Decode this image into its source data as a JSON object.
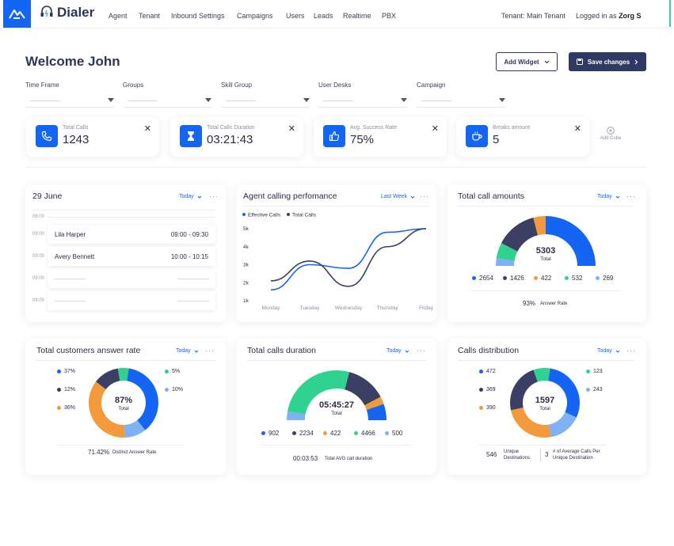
{
  "app": {
    "name": "Dialer"
  },
  "nav": [
    "Agent",
    "Tenant",
    "Inbound Settings",
    "Campaigns",
    "Users",
    "Leads",
    "Realtime",
    "PBX"
  ],
  "header_right": {
    "tenant": "Tenant: Main Tenant",
    "logged_prefix": "Logged in as",
    "user": "Zorg S"
  },
  "welcome": "Welcome John",
  "buttons": {
    "add_widget": "Add Widget",
    "save_changes": "Save changes"
  },
  "filters": [
    "Time Frame",
    "Groups",
    "Skill Group",
    "User Desks",
    "Campaign"
  ],
  "kpis": [
    {
      "label": "Total Calls",
      "value": "1243",
      "icon": "phone-icon"
    },
    {
      "label": "Total Calls Duration",
      "value": "03:21:43",
      "icon": "hourglass-icon"
    },
    {
      "label": "Avg. Success Rate",
      "value": "75%",
      "icon": "thumbs-up-icon"
    },
    {
      "label": "Breaks amount",
      "value": "5",
      "icon": "coffee-icon"
    }
  ],
  "add_cube": "Add Cube",
  "schedule": {
    "title": "29 June",
    "range": "Today",
    "times": [
      "08:00",
      "09:00",
      "09:00",
      "09:00",
      "09:00"
    ],
    "entries": [
      {
        "name": "Lila Harper",
        "time": "09:00 - 09:30"
      },
      {
        "name": "Avery Bennett",
        "time": "10:00 - 10:15"
      }
    ]
  },
  "perf": {
    "title": "Agent calling perfomance",
    "range": "Last Week",
    "chart_data": {
      "type": "line",
      "categories": [
        "Monday",
        "Tuesday",
        "Wednesday",
        "Thursday",
        "Friday"
      ],
      "series": [
        {
          "name": "Effective Calls",
          "values": [
            1.6,
            3.0,
            2.8,
            4.8,
            5.0
          ],
          "color": "#1565f4"
        },
        {
          "name": "Total Calls",
          "values": [
            2.1,
            3.2,
            1.8,
            4.0,
            5.0
          ],
          "color": "#3a3f63"
        }
      ],
      "y_ticks": [
        "5k",
        "4k",
        "3k",
        "2k",
        "1k"
      ],
      "ylim": [
        1,
        5
      ]
    }
  },
  "total_amounts": {
    "title": "Total call amounts",
    "range": "Today",
    "center_value": "5303",
    "center_label": "Total",
    "legend": [
      {
        "value": "2654",
        "color": "#1565f4"
      },
      {
        "value": "1426",
        "color": "#3a3f63"
      },
      {
        "value": "422",
        "color": "#f39a3c"
      },
      {
        "value": "532",
        "color": "#2fd38f"
      },
      {
        "value": "269",
        "color": "#7fb2f5"
      }
    ],
    "footer_value": "93%",
    "footer_label": "Answer Rate"
  },
  "answer_rate": {
    "title": "Total customers answer rate",
    "range": "Today",
    "center_value": "87%",
    "center_label": "Total",
    "left_legend": [
      {
        "value": "37%",
        "color": "#1565f4"
      },
      {
        "value": "12%",
        "color": "#3a3f63"
      },
      {
        "value": "36%",
        "color": "#f39a3c"
      }
    ],
    "right_legend": [
      {
        "value": "5%",
        "color": "#2fd38f"
      },
      {
        "value": "10%",
        "color": "#7fb2f5"
      }
    ],
    "footer_value": "71.42%",
    "footer_label": "Distinct Answer Rate"
  },
  "duration": {
    "title": "Total calls duration",
    "range": "Today",
    "center_value": "05:45:27",
    "center_label": "Total",
    "legend": [
      {
        "value": "902",
        "color": "#1565f4"
      },
      {
        "value": "2234",
        "color": "#3a3f63"
      },
      {
        "value": "422",
        "color": "#f39a3c"
      },
      {
        "value": "4466",
        "color": "#2fd38f"
      },
      {
        "value": "500",
        "color": "#7fb2f5"
      }
    ],
    "footer_value": "00:03:53",
    "footer_label": "Total AVG call duration"
  },
  "distribution": {
    "title": "Calls distribution",
    "range": "Today",
    "center_value": "1597",
    "center_label": "Total",
    "left_legend": [
      {
        "value": "472",
        "color": "#1565f4"
      },
      {
        "value": "369",
        "color": "#3a3f63"
      },
      {
        "value": "390",
        "color": "#f39a3c"
      }
    ],
    "right_legend": [
      {
        "value": "123",
        "color": "#2fd38f"
      },
      {
        "value": "243",
        "color": "#7fb2f5"
      }
    ],
    "footer_left_value": "546",
    "footer_left_label": "Unique Destinations",
    "footer_right_value": "3",
    "footer_right_label": "# of Average Calls Per Unique Destination"
  }
}
